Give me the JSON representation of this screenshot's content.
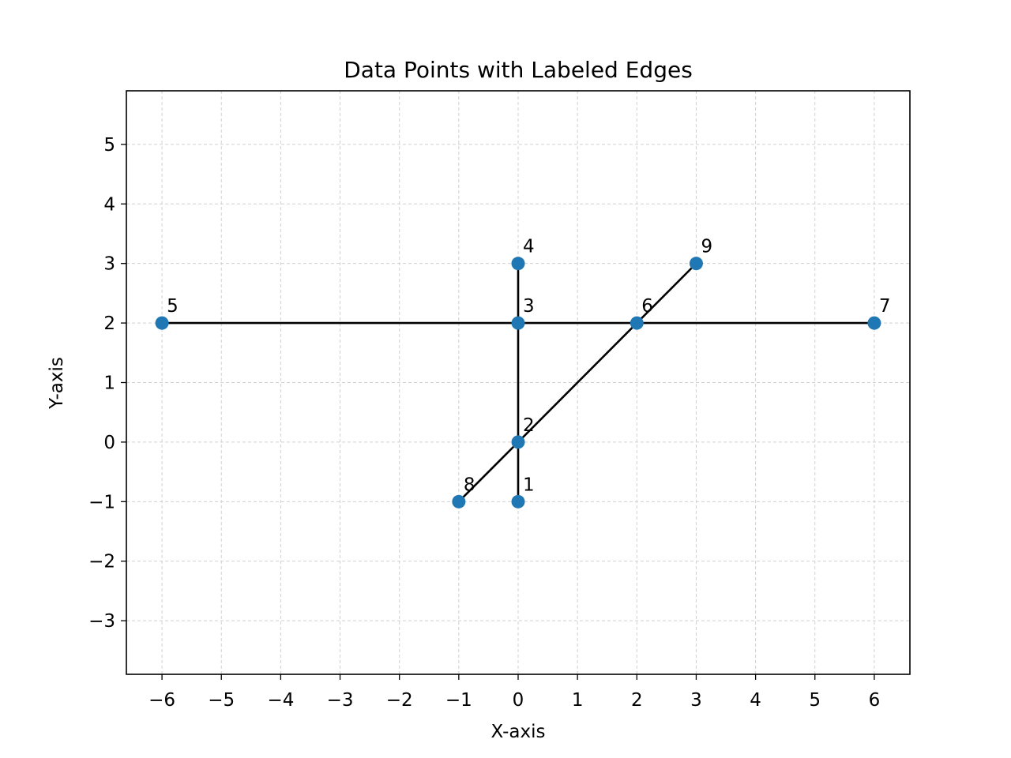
{
  "chart_data": {
    "type": "scatter",
    "title": "Data Points with Labeled Edges",
    "xlabel": "X-axis",
    "ylabel": "Y-axis",
    "xlim": [
      -6.6,
      6.6
    ],
    "ylim": [
      -3.9,
      5.9
    ],
    "xticks": [
      -6,
      -5,
      -4,
      -3,
      -2,
      -1,
      0,
      1,
      2,
      3,
      4,
      5,
      6
    ],
    "yticks": [
      -3,
      -2,
      -1,
      0,
      1,
      2,
      3,
      4,
      5
    ],
    "xtick_labels": [
      "−6",
      "−5",
      "−4",
      "−3",
      "−2",
      "−1",
      "0",
      "1",
      "2",
      "3",
      "4",
      "5",
      "6"
    ],
    "ytick_labels": [
      "−3",
      "−2",
      "−1",
      "0",
      "1",
      "2",
      "3",
      "4",
      "5"
    ],
    "grid": true,
    "point_color": "#1f77b4",
    "edge_color": "#000000",
    "points": [
      {
        "label": "1",
        "x": 0,
        "y": -1
      },
      {
        "label": "2",
        "x": 0,
        "y": 0
      },
      {
        "label": "3",
        "x": 0,
        "y": 2
      },
      {
        "label": "4",
        "x": 0,
        "y": 3
      },
      {
        "label": "5",
        "x": -6,
        "y": 2
      },
      {
        "label": "6",
        "x": 2,
        "y": 2
      },
      {
        "label": "7",
        "x": 6,
        "y": 2
      },
      {
        "label": "8",
        "x": -1,
        "y": -1
      },
      {
        "label": "9",
        "x": 3,
        "y": 3
      }
    ],
    "edges": [
      [
        "1",
        "2"
      ],
      [
        "2",
        "3"
      ],
      [
        "3",
        "4"
      ],
      [
        "5",
        "3"
      ],
      [
        "3",
        "6"
      ],
      [
        "6",
        "7"
      ],
      [
        "8",
        "2"
      ],
      [
        "2",
        "6"
      ],
      [
        "6",
        "9"
      ]
    ]
  }
}
